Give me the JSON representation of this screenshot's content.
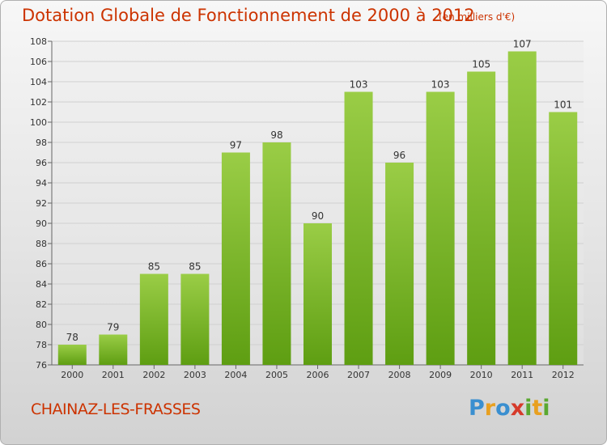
{
  "header": {
    "title": "Dotation Globale de Fonctionnement de 2000 à 2012",
    "unit": "(en milliers d'€)"
  },
  "footer": {
    "commune": "CHAINAZ-LES-FRASSES",
    "logo": {
      "letters": [
        "P",
        "r",
        "o",
        "x",
        "i",
        "t",
        "i"
      ],
      "colors": [
        "#3a8fd0",
        "#e8a020",
        "#3a8fd0",
        "#d63a2a",
        "#5aa830",
        "#e8a020",
        "#5aa830"
      ]
    }
  },
  "chart_data": {
    "type": "bar",
    "categories": [
      "2000",
      "2001",
      "2002",
      "2003",
      "2004",
      "2005",
      "2006",
      "2007",
      "2008",
      "2009",
      "2010",
      "2011",
      "2012"
    ],
    "values": [
      78,
      79,
      85,
      85,
      97,
      98,
      90,
      103,
      96,
      103,
      105,
      107,
      101
    ],
    "ylim": [
      76,
      108
    ],
    "yticks": [
      76,
      78,
      80,
      82,
      84,
      86,
      88,
      90,
      92,
      94,
      96,
      98,
      100,
      102,
      104,
      106,
      108
    ],
    "grid": true,
    "colors": {
      "bar_top": "#9acd46",
      "bar_bottom": "#5e9e12",
      "grid": "#d0d0d0",
      "text": "#333333"
    }
  }
}
